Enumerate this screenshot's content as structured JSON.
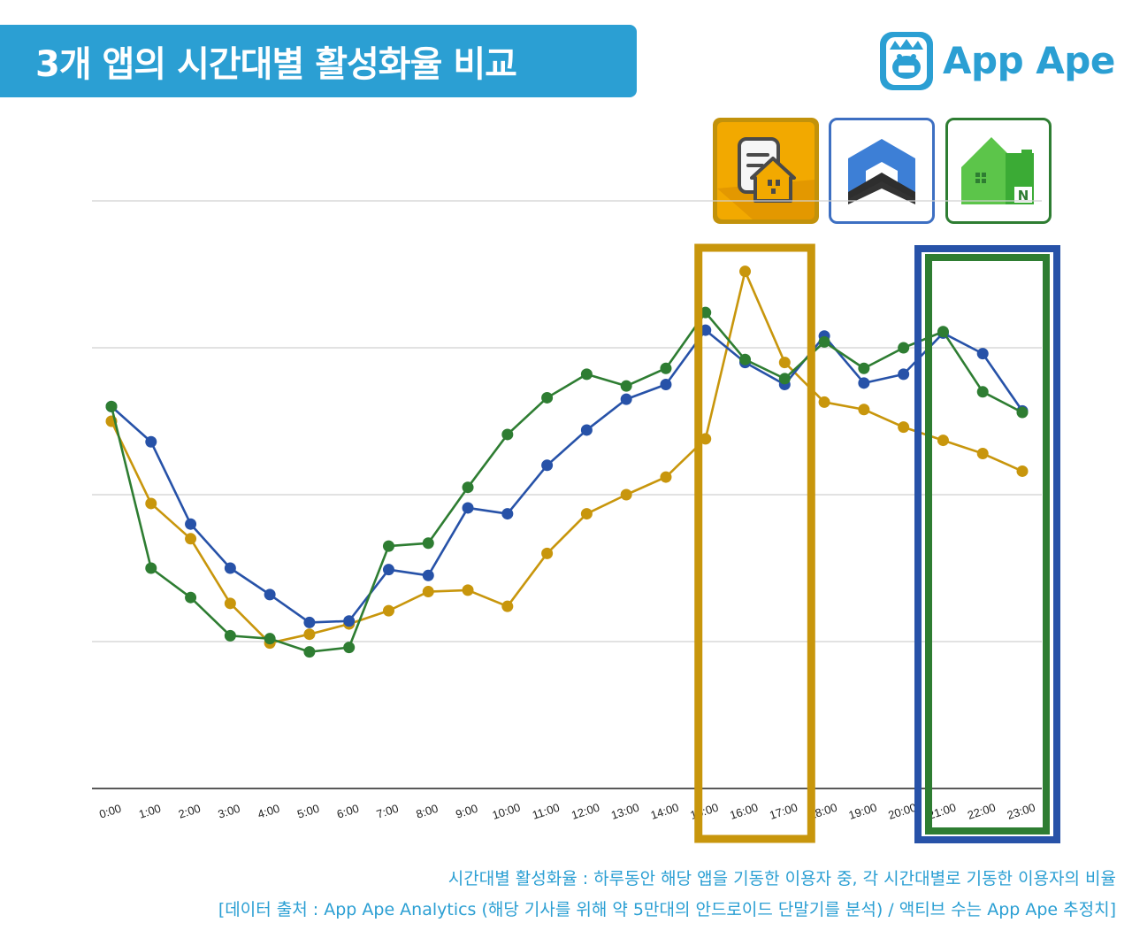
{
  "header": {
    "title": "3개 앱의 시간대별 활성화율 비교",
    "brand_name": "App Ape"
  },
  "app_icons": [
    {
      "icon": "house-document-icon",
      "border_color": "#c2920b",
      "bg_color": "#f2a900"
    },
    {
      "icon": "roof-chevron-icon",
      "border_color": "#3d6fc2",
      "bg_color": "#ffffff"
    },
    {
      "icon": "green-house-n-icon",
      "border_color": "#2e7d32",
      "bg_color": "#ffffff"
    }
  ],
  "colors": {
    "brand": "#2b9fd3",
    "gold": "#c8960c",
    "blue": "#2752a8",
    "green": "#2e7d32",
    "grid": "#d0d0d0"
  },
  "chart_data": {
    "type": "line",
    "categories": [
      "0:00",
      "1:00",
      "2:00",
      "3:00",
      "4:00",
      "5:00",
      "6:00",
      "7:00",
      "8:00",
      "9:00",
      "10:00",
      "11:00",
      "12:00",
      "13:00",
      "14:00",
      "15:00",
      "16:00",
      "17:00",
      "18:00",
      "19:00",
      "20:00",
      "21:00",
      "22:00",
      "23:00"
    ],
    "ylim": [
      0,
      4
    ],
    "grid": true,
    "series": [
      {
        "color": "#c8960c",
        "values": [
          2.5,
          1.94,
          1.7,
          1.26,
          0.99,
          1.05,
          1.12,
          1.21,
          1.34,
          1.35,
          1.24,
          1.6,
          1.87,
          2.0,
          2.12,
          2.38,
          3.52,
          2.9,
          2.63,
          2.58,
          2.46,
          2.37,
          2.28,
          2.16
        ]
      },
      {
        "color": "#2752a8",
        "values": [
          2.6,
          2.36,
          1.8,
          1.5,
          1.32,
          1.13,
          1.14,
          1.49,
          1.45,
          1.91,
          1.87,
          2.2,
          2.44,
          2.65,
          2.75,
          3.12,
          2.9,
          2.75,
          3.08,
          2.76,
          2.82,
          3.1,
          2.96,
          2.57
        ]
      },
      {
        "color": "#2e7d32",
        "values": [
          2.6,
          1.5,
          1.3,
          1.04,
          1.02,
          0.93,
          0.96,
          1.65,
          1.67,
          2.05,
          2.41,
          2.66,
          2.82,
          2.74,
          2.86,
          3.24,
          2.92,
          2.79,
          3.04,
          2.86,
          3.0,
          3.11,
          2.7,
          2.56
        ]
      }
    ]
  },
  "footnotes": {
    "line1": "시간대별 활성화율 : 하루동안 해당 앱을 기동한 이용자 중, 각 시간대별로 기동한 이용자의 비율",
    "line2": "[데이터 출처 : App Ape Analytics (해당 기사를 위해 약 5만대의 안드로이드 단말기를 분석) / 액티브 수는 App Ape 추정치]"
  }
}
